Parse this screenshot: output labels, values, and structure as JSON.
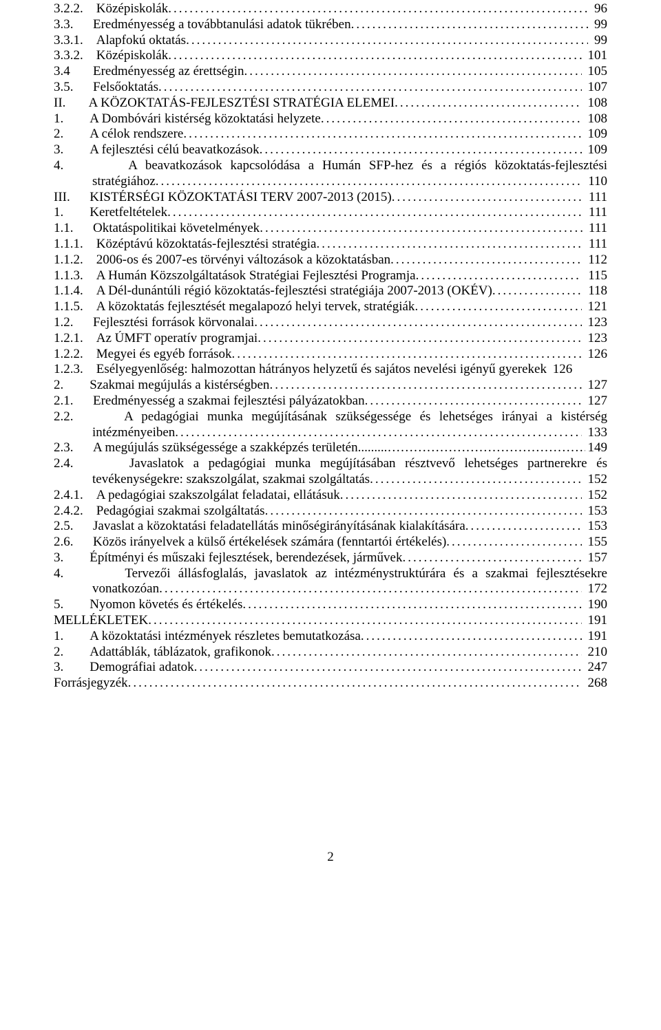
{
  "toc": [
    {
      "label": "3.2.2.",
      "title": "Középiskolák",
      "page": "96",
      "indent": 0
    },
    {
      "label": "3.3.",
      "title": "Eredményesség a továbbtanulási adatok tükrében",
      "page": "99",
      "indent": 0
    },
    {
      "label": "3.3.1.",
      "title": "Alapfokú oktatás",
      "page": "99",
      "indent": 0
    },
    {
      "label": "3.3.2.",
      "title": "Középiskolák",
      "page": "101",
      "indent": 0
    },
    {
      "label": "3.4",
      "title": "Eredményesség az érettségin",
      "page": "105",
      "indent": 0
    },
    {
      "label": "3.5.",
      "title": "Felsőoktatás",
      "page": "107",
      "indent": 0
    },
    {
      "label": "II.",
      "title": "A KÖZOKTATÁS-FEJLESZTÉSI STRATÉGIA ELEMEI",
      "page": "108",
      "indent": 0
    },
    {
      "label": "1.",
      "title": "A Dombóvári kistérség közoktatási helyzete",
      "page": "108",
      "indent": 0
    },
    {
      "label": "2.",
      "title": "A célok rendszere",
      "page": "109",
      "indent": 0
    },
    {
      "label": "3.",
      "title": "A fejlesztési célú beavatkozások",
      "page": "109",
      "indent": 0
    },
    {
      "type": "wrap2",
      "label": "4.",
      "line1": "A  beavatkozások  kapcsolódása  a  Humán  SFP-hez  és  a  régiós  közoktatás-fejlesztési",
      "line2": "stratégiához",
      "page": "110"
    },
    {
      "label": "III.",
      "title": "KISTÉRSÉGI KÖZOKTATÁSI TERV 2007-2013 (2015)",
      "page": "111",
      "indent": 0
    },
    {
      "label": "1.",
      "title": "Keretfeltételek",
      "page": "111",
      "indent": 0
    },
    {
      "label": "1.1.",
      "title": "Oktatáspolitikai követelmények",
      "page": "111",
      "indent": 0
    },
    {
      "label": "1.1.1.",
      "title": "Középtávú közoktatás-fejlesztési stratégia",
      "page": "111",
      "indent": 0
    },
    {
      "label": "1.1.2.",
      "title": "2006-os és 2007-es törvényi változások a közoktatásban",
      "page": "112",
      "indent": 0
    },
    {
      "label": "1.1.3.",
      "title": "A Humán Közszolgáltatások Stratégiai Fejlesztési Programja",
      "page": "115",
      "indent": 0
    },
    {
      "label": "1.1.4.",
      "title": "A Dél-dunántúli régió közoktatás-fejlesztési stratégiája 2007-2013 (OKÉV)",
      "page": "118",
      "indent": 0
    },
    {
      "label": "1.1.5.",
      "title": "A közoktatás fejlesztését megalapozó helyi tervek, stratégiák",
      "page": "121",
      "indent": 0
    },
    {
      "label": "1.2.",
      "title": "Fejlesztési források körvonalai",
      "page": "123",
      "indent": 0
    },
    {
      "label": "1.2.1.",
      "title": "Az ÚMFT operatív programjai",
      "page": "123",
      "indent": 0
    },
    {
      "label": "1.2.2.",
      "title": "Megyei és egyéb források",
      "page": "126",
      "indent": 0
    },
    {
      "label": "1.2.3.",
      "title": "Esélyegyenlőség: halmozottan hátrányos helyzetű és sajátos nevelési igényű gyerekek",
      "page": "126",
      "indent": 0,
      "nodots": true
    },
    {
      "label": "2.",
      "title": "Szakmai megújulás a kistérségben",
      "page": "127",
      "indent": 0
    },
    {
      "label": "2.1.",
      "title": "Eredményesség a szakmai fejlesztési pályázatokban",
      "page": "127",
      "indent": 0
    },
    {
      "type": "wrap2",
      "label": "2.2.",
      "line1": "A  pedagógiai  munka  megújításának  szükségessége  és  lehetséges  irányai  a  kistérség",
      "line2": "intézményeiben",
      "page": "133"
    },
    {
      "type": "special23",
      "label": "2.3.",
      "title": "A megújulás szükségessége a szakképzés területén",
      "page": "149"
    },
    {
      "type": "wrap2",
      "label": "2.4.",
      "line1": "Javaslatok  a  pedagógiai  munka  megújításában  résztvevő  lehetséges  partnerekre  és",
      "line2": "tevékenységekre: szakszolgálat, szakmai szolgáltatás",
      "page": "152"
    },
    {
      "label": "2.4.1.",
      "title": "A pedagógiai szakszolgálat feladatai, ellátásuk",
      "page": "152",
      "indent": 0
    },
    {
      "label": "2.4.2.",
      "title": "Pedagógiai szakmai szolgáltatás",
      "page": "153",
      "indent": 0
    },
    {
      "label": "2.5.",
      "title": "Javaslat a közoktatási feladatellátás minőségirányításának kialakítására",
      "page": "153",
      "indent": 0
    },
    {
      "label": "2.6.",
      "title": "Közös irányelvek a külső értékelések számára (fenntartói értékelés)",
      "page": "155",
      "indent": 0
    },
    {
      "label": "3.",
      "title": "Építményi és műszaki fejlesztések, berendezések, járművek",
      "page": "157",
      "indent": 0
    },
    {
      "type": "wrap2",
      "label": "4.",
      "line1": "Tervezői állásfoglalás, javaslatok az intézménystruktúrára és a szakmai fejlesztésekre",
      "line2": "vonatkozóan",
      "page": "172"
    },
    {
      "label": "5.",
      "title": "Nyomon követés és értékelés",
      "page": "190",
      "indent": 0
    },
    {
      "label": "MELLÉKLETEK",
      "title": "",
      "page": "191",
      "indent": 0,
      "nolabelgap": true
    },
    {
      "label": "1.",
      "title": "A közoktatási intézmények részletes bemutatkozása",
      "page": "191",
      "indent": 0
    },
    {
      "label": "2.",
      "title": "Adattáblák, táblázatok, grafikonok",
      "page": "210",
      "indent": 0
    },
    {
      "label": "3.",
      "title": "Demográfiai adatok",
      "page": "247",
      "indent": 0
    },
    {
      "label": "Forrásjegyzék",
      "title": "",
      "page": "268",
      "indent": 0,
      "nolabelgap": true
    }
  ],
  "pageNumber": "2"
}
